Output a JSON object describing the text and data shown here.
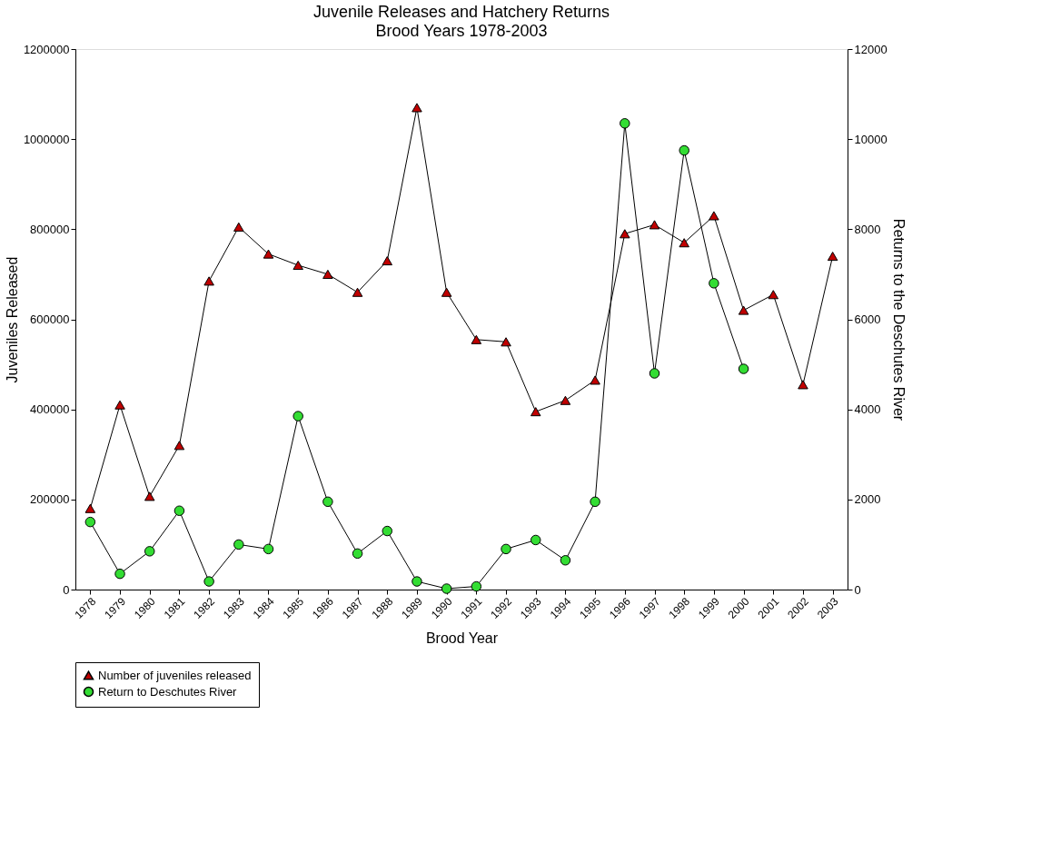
{
  "chart_data": {
    "type": "line",
    "title": "Juvenile Releases and Hatchery Returns",
    "subtitle": "Brood Years 1978-2003",
    "xlabel": "Brood Year",
    "ylabel": "Juveniles Released",
    "y2label": "Returns to the Deschutes River",
    "categories": [
      "1978",
      "1979",
      "1980",
      "1981",
      "1982",
      "1983",
      "1984",
      "1985",
      "1986",
      "1987",
      "1988",
      "1989",
      "1990",
      "1991",
      "1992",
      "1993",
      "1994",
      "1995",
      "1996",
      "1997",
      "1998",
      "1999",
      "2000",
      "2001",
      "2002",
      "2003"
    ],
    "series": [
      {
        "name": "Number of juveniles released",
        "color": "#c00000",
        "marker": "triangle",
        "values": [
          180000,
          410000,
          207000,
          320000,
          685000,
          805000,
          745000,
          720000,
          700000,
          660000,
          730000,
          1070000,
          660000,
          555000,
          550000,
          395000,
          420000,
          465000,
          790000,
          810000,
          770000,
          830000,
          620000,
          655000,
          455000,
          740000
        ]
      },
      {
        "name": "Return to Deschutes River",
        "color": "#33dd33",
        "marker": "circle",
        "axis": "y2",
        "values": [
          1500,
          350,
          850,
          1750,
          180,
          1000,
          900,
          3850,
          1950,
          800,
          1300,
          180,
          20,
          70,
          900,
          1100,
          650,
          1950,
          10350,
          4800,
          9750,
          6800,
          4900,
          null,
          null,
          null
        ]
      }
    ],
    "ylim": [
      0,
      1200000
    ],
    "yticks": [
      0,
      200000,
      400000,
      600000,
      800000,
      1000000,
      1200000
    ],
    "y2lim": [
      0,
      12000
    ],
    "y2ticks": [
      0,
      2000,
      4000,
      6000,
      8000,
      10000,
      12000
    ],
    "grid": false,
    "legend": "bottom",
    "line_style": "solid"
  }
}
